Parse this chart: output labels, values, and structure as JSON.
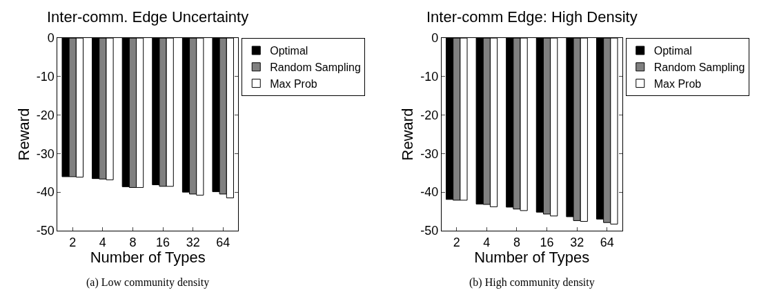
{
  "chart_data": [
    {
      "type": "bar",
      "title": "Inter-comm. Edge Uncertainty",
      "xlabel": "Number of Types",
      "ylabel": "Reward",
      "categories": [
        "2",
        "4",
        "8",
        "16",
        "32",
        "64"
      ],
      "ylim": [
        -50,
        0
      ],
      "yticks": [
        -50,
        -40,
        -30,
        -20,
        -10,
        0
      ],
      "legend": "top right",
      "annotations": [
        "(a) Low community density"
      ],
      "series": [
        {
          "name": "Optimal",
          "color": "#000000",
          "values": [
            -36.0,
            -36.5,
            -38.6,
            -38.1,
            -40.0,
            -39.9
          ]
        },
        {
          "name": "Random Sampling",
          "color": "#808080",
          "values": [
            -36.0,
            -36.6,
            -38.8,
            -38.5,
            -40.5,
            -40.5
          ]
        },
        {
          "name": "Max Prob",
          "color": "#ffffff",
          "values": [
            -36.1,
            -36.8,
            -38.8,
            -38.5,
            -40.8,
            -41.5
          ]
        }
      ]
    },
    {
      "type": "bar",
      "title": "Inter-comm Edge: High Density",
      "xlabel": "Number of Types",
      "ylabel": "Reward",
      "categories": [
        "2",
        "4",
        "8",
        "16",
        "32",
        "64"
      ],
      "ylim": [
        -50,
        0
      ],
      "yticks": [
        -50,
        -40,
        -30,
        -20,
        -10,
        0
      ],
      "legend": "top right",
      "annotations": [
        "(b) High community density"
      ],
      "series": [
        {
          "name": "Optimal",
          "color": "#000000",
          "values": [
            -41.9,
            -43.1,
            -43.9,
            -45.2,
            -46.4,
            -47.0
          ]
        },
        {
          "name": "Random Sampling",
          "color": "#808080",
          "values": [
            -42.1,
            -43.2,
            -44.4,
            -45.7,
            -47.4,
            -47.9
          ]
        },
        {
          "name": "Max Prob",
          "color": "#ffffff",
          "values": [
            -42.1,
            -43.8,
            -44.8,
            -46.2,
            -47.6,
            -48.3
          ]
        }
      ]
    }
  ]
}
